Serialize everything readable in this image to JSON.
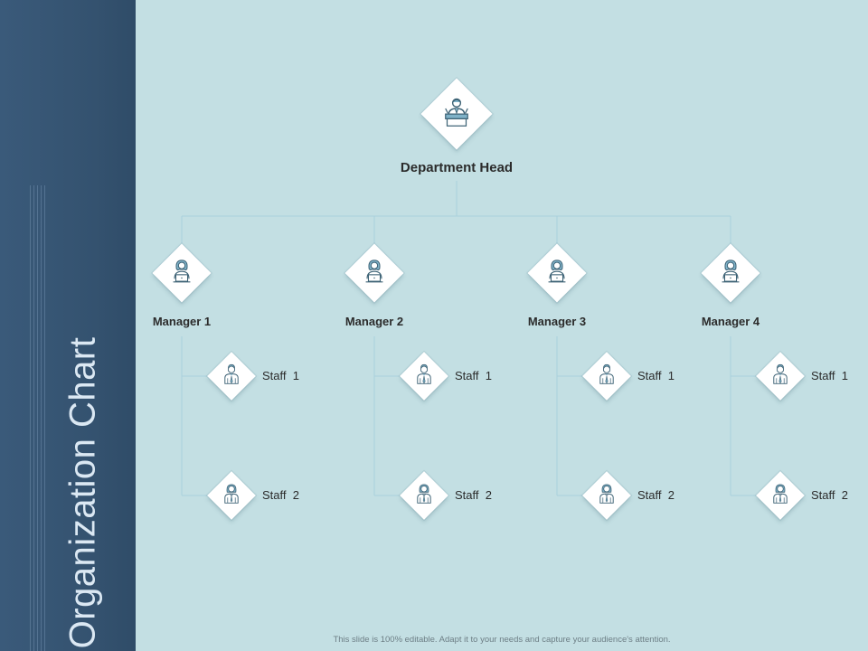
{
  "slide": {
    "title": "Organization Chart",
    "footer": "This slide is 100% editable. Adapt it to your needs and capture your audience's attention."
  },
  "chart": {
    "head": {
      "label": "Department Head",
      "icon": "speaker-podium-icon"
    },
    "managers": [
      {
        "label": "Manager 1",
        "icon": "woman-laptop-icon",
        "staff": [
          {
            "label": "Staff  1",
            "icon": "man-tie-icon"
          },
          {
            "label": "Staff  2",
            "icon": "woman-tie-icon"
          }
        ]
      },
      {
        "label": "Manager 2",
        "icon": "woman-laptop-icon",
        "staff": [
          {
            "label": "Staff  1",
            "icon": "man-tie-icon"
          },
          {
            "label": "Staff  2",
            "icon": "woman-tie-icon"
          }
        ]
      },
      {
        "label": "Manager 3",
        "icon": "woman-laptop-icon",
        "staff": [
          {
            "label": "Staff  1",
            "icon": "man-tie-icon"
          },
          {
            "label": "Staff  2",
            "icon": "woman-tie-icon"
          }
        ]
      },
      {
        "label": "Manager 4",
        "icon": "woman-laptop-icon",
        "staff": [
          {
            "label": "Staff  1",
            "icon": "man-tie-icon"
          },
          {
            "label": "Staff  2",
            "icon": "woman-tie-icon"
          }
        ]
      }
    ]
  },
  "colors": {
    "background": "#c3dfe3",
    "sidebar": "#34526f",
    "connector": "#a9d0dc",
    "icon_stroke": "#3d6275",
    "icon_fill": "#7fb2c8"
  }
}
